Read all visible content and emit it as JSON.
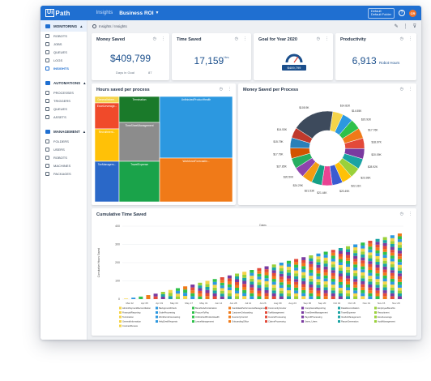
{
  "topbar": {
    "logo_mark": "Ui",
    "logo_text": "Path",
    "section": "Insights",
    "page": "Business ROI",
    "tenant_line1": "Default",
    "tenant_line2": "Default Folder",
    "help": "?",
    "avatar": "CR"
  },
  "sidebar": {
    "sections": [
      {
        "label": "MONITORING",
        "items": [
          "ROBOTS",
          "JOBS",
          "QUEUES",
          "LOGS",
          "INSIGHTS"
        ],
        "active": "INSIGHTS"
      },
      {
        "label": "AUTOMATIONS",
        "items": [
          "PROCESSES",
          "TRIGGERS",
          "QUEUES",
          "ASSETS"
        ]
      },
      {
        "label": "MANAGEMENT",
        "items": [
          "FOLDERS",
          "USERS",
          "ROBOTS",
          "MACHINES",
          "PACKAGES"
        ]
      }
    ]
  },
  "breadcrumb": "Insights / Insights",
  "kpis": {
    "money": {
      "title": "Money Saved",
      "value": "$409,799",
      "sub_label": "Days in Goal",
      "sub_value": "87"
    },
    "time": {
      "title": "Time Saved",
      "value": "17,159",
      "unit": "Hrs"
    },
    "goal": {
      "title": "Goal for Year 2020",
      "badge": "$409,799"
    },
    "productivity": {
      "title": "Productivity",
      "value": "6,913",
      "unit": "Robot Hours"
    }
  },
  "treemap": {
    "title": "Hours saved per process",
    "cells": [
      {
        "label": "GeneralInform...",
        "color": "#f5d44a"
      },
      {
        "label": "ExcelLeverage...",
        "color": "#f04a2a"
      },
      {
        "label": "Termination",
        "color": "#1a7a2a"
      },
      {
        "label": "UnfinishedProductHealth",
        "color": "#2c98e0"
      },
      {
        "label": "Recruitment...",
        "color": "#ffc107"
      },
      {
        "label": "TimeSheetManagement",
        "color": "#8c8c8c"
      },
      {
        "label": "TaxManagem...",
        "color": "#2a68c8"
      },
      {
        "label": "TravelExpense",
        "color": "#1aa34a"
      },
      {
        "label": "WorkforceForecastin...",
        "color": "#f07a18"
      },
      {
        "label": "",
        "color": "#2fc14a"
      },
      {
        "label": "",
        "color": "#7a3aa0"
      }
    ]
  },
  "donut": {
    "title": "Money Saved per Process",
    "labels": [
      "$14.82K",
      "$14.55K",
      "$20.92K",
      "$17.76K",
      "$18.97K",
      "$20.09K",
      "$28.92K",
      "$23.93K",
      "$22.31K",
      "$20.49K",
      "$21.44K",
      "$21.53K",
      "$24.29K",
      "$20.50K",
      "$27.85K",
      "$17.79K",
      "$15.79K",
      "$14.53K",
      "$105.9K"
    ]
  },
  "cumulative": {
    "title": "Cumulative Time Saved",
    "legend": [
      "AdminPaymentReconciliation",
      "BackgroundCheck",
      "BenefitsAdministration",
      "CandidatePerformanceManagement",
      "CommunityCourier",
      "ComplianceReporting",
      "DataReconciliation",
      "EmployeeBenefits",
      "FinancialReporting",
      "OrderProcessing",
      "ProcureToPay",
      "CustomerOnboarding",
      "TaxManagement",
      "TimeSheetManagement",
      "TravelExpense",
      "Recruitment",
      "Termination",
      "WorkforceForecasting",
      "UnfinishedProductHealth",
      "InventoryControl",
      "InvoiceProcessing",
      "PayrollProcessing",
      "VendorManagement",
      "ExcelLeverage",
      "GeneralInformation",
      "HelpDeskRequests",
      "LeaveManagement",
      "OnboardingOffice",
      "ClaimsProcessing",
      "Users_Users",
      "ReportGeneration",
      "AuditManagement",
      "ContractReview"
    ]
  },
  "chart_data": {
    "type": "bar",
    "title": "Cumulative Time Saved",
    "xlabel": "Dates",
    "ylabel": "Cumulative Hours Saved",
    "ylim": [
      0,
      400
    ],
    "yticks": [
      0,
      100,
      200,
      300,
      400
    ],
    "categories": [
      "Mar 22",
      "Apr 05",
      "Apr 19",
      "May 03",
      "May 17",
      "May 31",
      "Jun 14",
      "Jun 28",
      "Jul 12",
      "Jul 26",
      "Aug 09",
      "Aug 23",
      "Sep 06",
      "Sep 20",
      "Oct 04",
      "Oct 18",
      "Nov 01",
      "Nov 15",
      "Nov 29",
      "Dec 13",
      "Dec 27",
      "Jan 10",
      "Jan 24",
      "Feb 07",
      "Feb 21",
      "Mar 06",
      "Mar 20",
      "Apr 03",
      "Apr 17",
      "May 01",
      "May 15",
      "May 29",
      "Jun 12",
      "Jun 26",
      "Jul 10",
      "Jul 24",
      "Aug 07",
      "Aug 21"
    ],
    "values": [
      3,
      8,
      14,
      22,
      30,
      40,
      50,
      60,
      70,
      80,
      90,
      100,
      110,
      120,
      130,
      140,
      150,
      160,
      170,
      180,
      190,
      200,
      210,
      220,
      230,
      240,
      250,
      260,
      270,
      280,
      290,
      300,
      310,
      320,
      330,
      340,
      350,
      360
    ],
    "xtick_labels": [
      "Mar 22",
      "Apr 05",
      "Apr 19",
      "May 03",
      "May 17",
      "May 31",
      "Jun 14",
      "Jun 28",
      "Jul 12",
      "Jul 26",
      "Aug 09",
      "Aug 23",
      "Sep 06",
      "Sep 20",
      "Oct 04",
      "Oct 18",
      "Nov 01",
      "Nov 15",
      "Nov 29"
    ],
    "series_colors": [
      "#f5d44a",
      "#2c98e0",
      "#2fc14a",
      "#f07a18",
      "#e34a3a",
      "#7a3aa0",
      "#1aa3a3",
      "#9ad13a"
    ],
    "grid": true,
    "legend_position": "bottom"
  }
}
